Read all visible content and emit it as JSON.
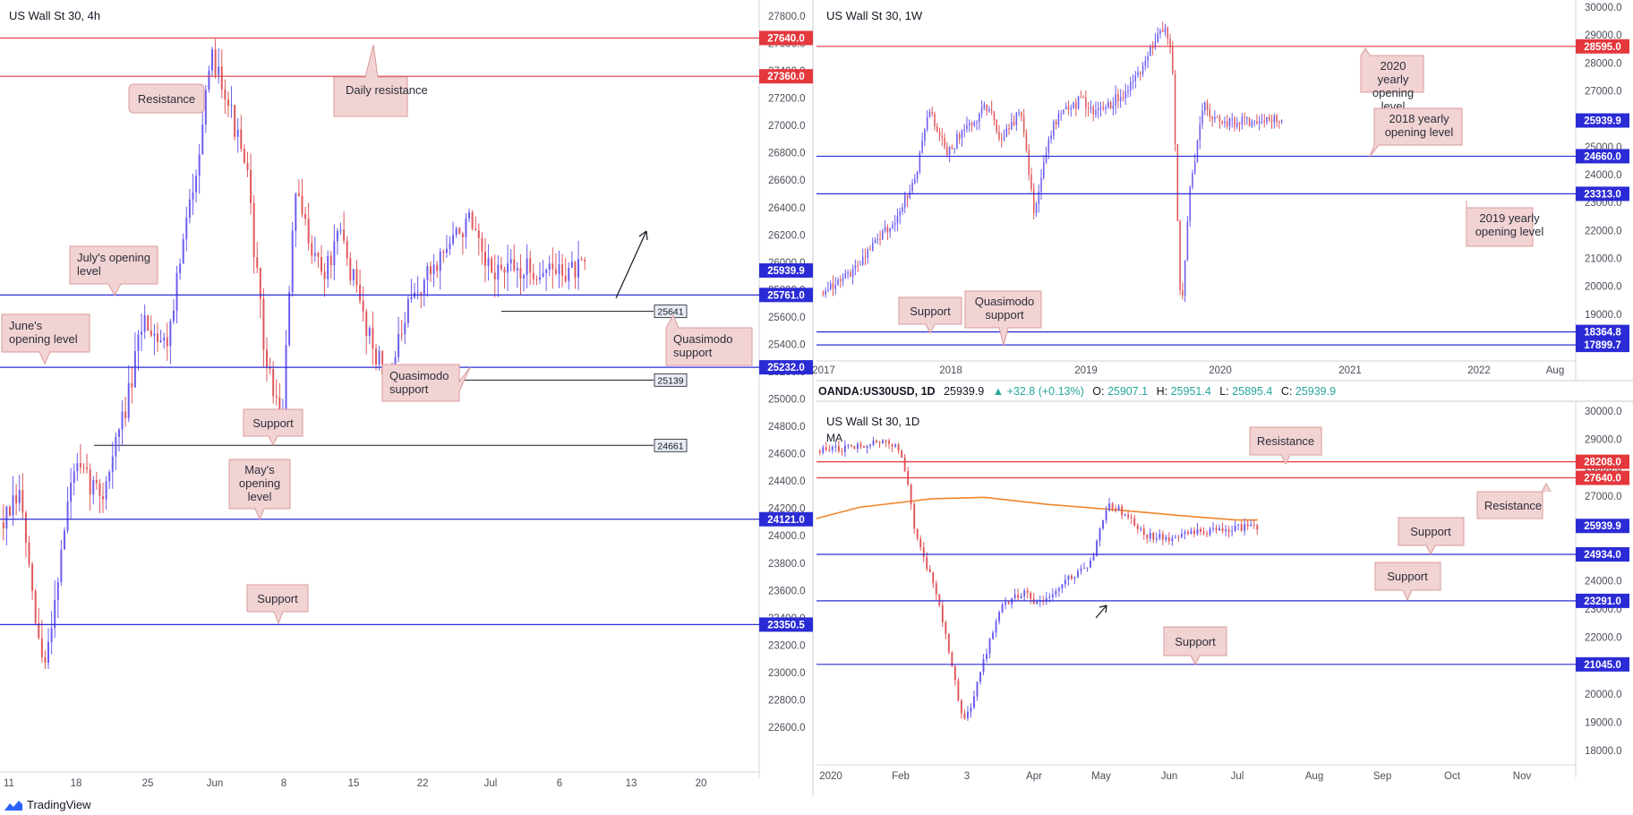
{
  "charts": {
    "h4": {
      "title": "US Wall St 30, 4h",
      "priceRange": [
        22450,
        27900
      ],
      "priceTicks": [
        22600,
        22800,
        23000,
        23200,
        23400,
        23600,
        23800,
        24000,
        24200,
        24400,
        24600,
        24800,
        25000,
        25200,
        25400,
        25600,
        25800,
        26000,
        26200,
        26400,
        26600,
        26800,
        27000,
        27200,
        27400,
        27600,
        27800
      ],
      "timeLabels": [
        "11",
        "18",
        "25",
        "Jun",
        "8",
        "15",
        "22",
        "Jul",
        "6",
        "13",
        "20"
      ],
      "currentPrice": "25939.9",
      "levels": [
        {
          "value": 27640,
          "color": "red",
          "tag": "27640.0"
        },
        {
          "value": 27360,
          "color": "red",
          "tag": "27360.0"
        },
        {
          "value": 25761,
          "color": "blue",
          "tag": "25761.0"
        },
        {
          "value": 25232,
          "color": "blue",
          "tag": "25232.0"
        },
        {
          "value": 24121,
          "color": "blue",
          "tag": "24121.0"
        },
        {
          "value": 23350.5,
          "color": "blue",
          "tag": "23350.5"
        }
      ],
      "markers": [
        "25641",
        "25139",
        "24661"
      ],
      "annotations": [
        "Resistance",
        "Daily resistance",
        "July's opening level",
        "June's opening level",
        "Quasimodo support",
        "Quasimodo support",
        "Support",
        "May's opening level",
        "Support"
      ]
    },
    "w1": {
      "title": "US Wall St 30, 1W",
      "priceRange": [
        17400,
        30200
      ],
      "priceTicks": [
        18000,
        19000,
        20000,
        21000,
        22000,
        23000,
        24000,
        25000,
        26000,
        27000,
        28000,
        29000,
        30000
      ],
      "timeLabels": [
        "2017",
        "2018",
        "2019",
        "2020",
        "2021",
        "2022",
        "Aug"
      ],
      "currentPrice": "25939.9",
      "levels": [
        {
          "value": 28595,
          "color": "red",
          "tag": "28595.0"
        },
        {
          "value": 24660,
          "color": "blue",
          "tag": "24660.0"
        },
        {
          "value": 23313,
          "color": "blue",
          "tag": "23313.0"
        },
        {
          "value": 18364.8,
          "color": "blue",
          "tag": "18364.8"
        },
        {
          "value": 17899.7,
          "color": "blue",
          "tag": "17899.7"
        }
      ],
      "annotations": [
        "2020 yearly opening level",
        "2018 yearly opening level",
        "2019 yearly opening level",
        "Support",
        "Quasimodo support"
      ]
    },
    "d1": {
      "title": "US Wall St 30, 1D",
      "ma_label": "MA",
      "priceRange": [
        17600,
        30100
      ],
      "priceTicks": [
        18000,
        19000,
        20000,
        21000,
        22000,
        23000,
        24000,
        25000,
        26000,
        27000,
        28000,
        29000,
        30000
      ],
      "timeLabels": [
        "2020",
        "Feb",
        "3",
        "Apr",
        "May",
        "Jun",
        "Jul",
        "Aug",
        "Sep",
        "Oct",
        "Nov"
      ],
      "currentPrice": "25939.9",
      "levels": [
        {
          "value": 28208,
          "color": "red",
          "tag": "28208.0"
        },
        {
          "value": 27640,
          "color": "red",
          "tag": "27640.0"
        },
        {
          "value": 24934,
          "color": "blue",
          "tag": "24934.0"
        },
        {
          "value": 23291,
          "color": "blue",
          "tag": "23291.0"
        },
        {
          "value": 21045,
          "color": "blue",
          "tag": "21045.0"
        }
      ],
      "annotations": [
        "Resistance",
        "Resistance",
        "Support",
        "Support",
        "Support"
      ]
    }
  },
  "legend": {
    "symbol": "OANDA:US30USD, 1D",
    "last": "25939.9",
    "change": "▲ +32.8 (+0.13%)",
    "open_label": "O:",
    "open": "25907.1",
    "high_label": "H:",
    "high": "25951.4",
    "low_label": "L:",
    "low": "25895.4",
    "close_label": "C:",
    "close": "25939.9"
  },
  "footer": {
    "brand": "TradingView"
  },
  "colors": {
    "up": "#6a5cf0",
    "down": "#e0575b",
    "red_level": "#e4383d",
    "blue_level": "#2b2bd6",
    "ma": "#f0862a",
    "label_bg": "#f2d3d3",
    "label_border": "#d99b9b"
  }
}
